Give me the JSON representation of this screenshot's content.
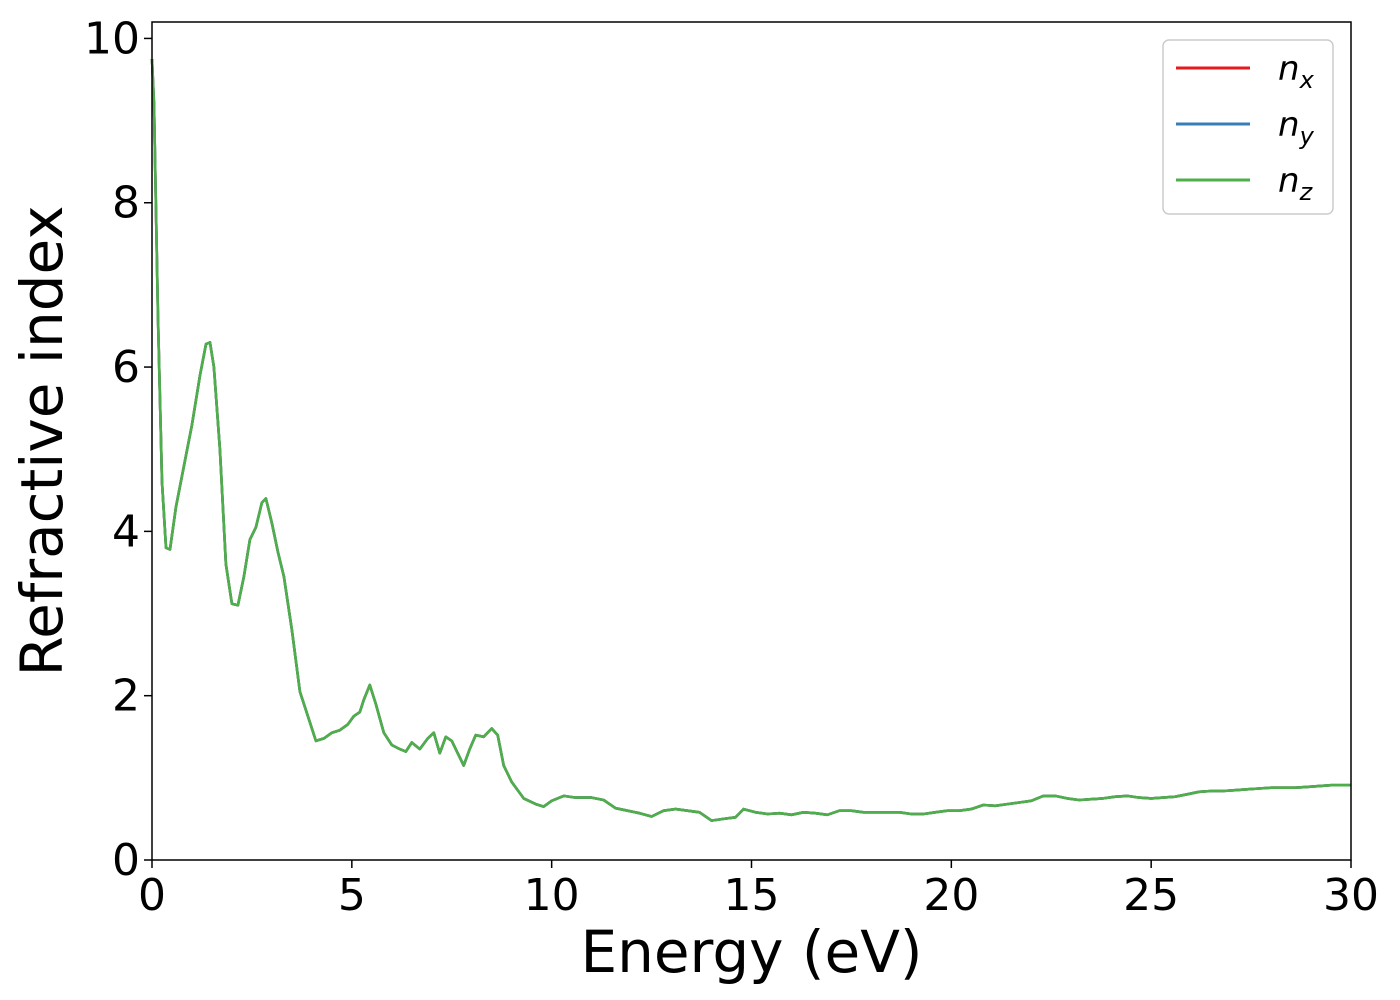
{
  "chart_data": {
    "type": "line",
    "xlabel": "Energy (eV)",
    "ylabel": "Refractive index",
    "xlim": [
      0,
      30
    ],
    "ylim": [
      0,
      10.2
    ],
    "xticks": [
      0,
      5,
      10,
      15,
      20,
      25,
      30
    ],
    "yticks": [
      0,
      2,
      4,
      6,
      8,
      10
    ],
    "xtick_labels": [
      "0",
      "5",
      "10",
      "15",
      "20",
      "25",
      "30"
    ],
    "ytick_labels": [
      "0",
      "2",
      "4",
      "6",
      "8",
      "10"
    ],
    "grid": false,
    "legend_position": "top-right",
    "series": [
      {
        "name": "n_x",
        "label_base": "n",
        "label_sub": "x",
        "color": "#e41a1c"
      },
      {
        "name": "n_y",
        "label_base": "n",
        "label_sub": "y",
        "color": "#377eb8"
      },
      {
        "name": "n_z",
        "label_base": "n",
        "label_sub": "z",
        "color": "#4daf4a"
      }
    ],
    "x": [
      0,
      0.05,
      0.15,
      0.25,
      0.35,
      0.45,
      0.6,
      0.8,
      1.0,
      1.2,
      1.35,
      1.45,
      1.55,
      1.7,
      1.85,
      2.0,
      2.15,
      2.3,
      2.45,
      2.6,
      2.75,
      2.85,
      3.0,
      3.15,
      3.3,
      3.5,
      3.7,
      3.9,
      4.1,
      4.3,
      4.5,
      4.7,
      4.9,
      5.05,
      5.2,
      5.3,
      5.45,
      5.6,
      5.8,
      6.0,
      6.2,
      6.35,
      6.5,
      6.7,
      6.9,
      7.05,
      7.2,
      7.35,
      7.5,
      7.65,
      7.8,
      7.95,
      8.1,
      8.3,
      8.5,
      8.65,
      8.8,
      9.0,
      9.3,
      9.6,
      9.8,
      10.0,
      10.3,
      10.6,
      11.0,
      11.3,
      11.6,
      11.9,
      12.2,
      12.5,
      12.8,
      13.1,
      13.4,
      13.7,
      14.0,
      14.3,
      14.6,
      14.8,
      15.1,
      15.4,
      15.7,
      16.0,
      16.3,
      16.6,
      16.9,
      17.2,
      17.5,
      17.8,
      18.1,
      18.4,
      18.7,
      19.0,
      19.3,
      19.6,
      19.9,
      20.2,
      20.5,
      20.8,
      21.1,
      21.4,
      21.7,
      22.0,
      22.3,
      22.6,
      22.9,
      23.2,
      23.5,
      23.8,
      24.1,
      24.4,
      24.7,
      25.0,
      25.3,
      25.6,
      25.9,
      26.2,
      26.5,
      26.8,
      27.1,
      27.4,
      27.7,
      28.0,
      28.3,
      28.6,
      28.9,
      29.2,
      29.5,
      29.8,
      30.0
    ],
    "values": [
      9.75,
      9.2,
      6.6,
      4.6,
      3.8,
      3.78,
      4.3,
      4.8,
      5.3,
      5.9,
      6.28,
      6.3,
      6.0,
      5.0,
      3.6,
      3.12,
      3.1,
      3.45,
      3.9,
      4.05,
      4.35,
      4.4,
      4.1,
      3.75,
      3.45,
      2.8,
      2.05,
      1.75,
      1.45,
      1.48,
      1.55,
      1.58,
      1.65,
      1.75,
      1.8,
      1.95,
      2.13,
      1.9,
      1.55,
      1.4,
      1.35,
      1.32,
      1.43,
      1.35,
      1.48,
      1.55,
      1.3,
      1.5,
      1.45,
      1.3,
      1.15,
      1.35,
      1.52,
      1.5,
      1.6,
      1.52,
      1.15,
      0.95,
      0.75,
      0.68,
      0.65,
      0.72,
      0.78,
      0.76,
      0.76,
      0.73,
      0.63,
      0.6,
      0.57,
      0.53,
      0.6,
      0.62,
      0.6,
      0.58,
      0.48,
      0.5,
      0.52,
      0.62,
      0.58,
      0.56,
      0.57,
      0.55,
      0.58,
      0.57,
      0.55,
      0.6,
      0.6,
      0.58,
      0.58,
      0.58,
      0.58,
      0.56,
      0.56,
      0.58,
      0.6,
      0.6,
      0.62,
      0.67,
      0.66,
      0.68,
      0.7,
      0.72,
      0.78,
      0.78,
      0.75,
      0.73,
      0.74,
      0.75,
      0.77,
      0.78,
      0.76,
      0.75,
      0.76,
      0.77,
      0.8,
      0.83,
      0.84,
      0.84,
      0.85,
      0.86,
      0.87,
      0.88,
      0.88,
      0.88,
      0.89,
      0.9,
      0.91,
      0.91,
      0.91
    ]
  }
}
